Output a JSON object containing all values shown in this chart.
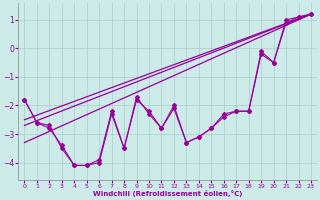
{
  "background_color": "#cceae8",
  "grid_color": "#aacccc",
  "line_color": "#990099",
  "marker": "D",
  "xlim": [
    -0.5,
    23.5
  ],
  "ylim": [
    -4.6,
    1.6
  ],
  "yticks": [
    -4,
    -3,
    -2,
    -1,
    0,
    1
  ],
  "xticks": [
    0,
    1,
    2,
    3,
    4,
    5,
    6,
    7,
    8,
    9,
    10,
    11,
    12,
    13,
    14,
    15,
    16,
    17,
    18,
    19,
    20,
    21,
    22,
    23
  ],
  "xlabel": "Windchill (Refroidissement éolien,°C)",
  "series_zigzag_1": {
    "x": [
      0,
      1,
      2,
      3,
      4,
      5,
      6,
      7,
      8,
      9,
      10,
      11,
      12,
      13,
      14,
      15,
      16,
      17,
      18,
      19,
      20,
      21,
      22,
      23
    ],
    "y": [
      -1.8,
      -2.6,
      -2.7,
      -3.5,
      -4.1,
      -4.1,
      -4.0,
      -2.3,
      -3.5,
      -1.7,
      -2.3,
      -2.8,
      -2.0,
      -3.3,
      -3.1,
      -2.8,
      -2.4,
      -2.2,
      -2.2,
      -0.1,
      -0.5,
      0.9,
      1.1,
      1.2
    ]
  },
  "series_zigzag_2": {
    "x": [
      0,
      1,
      2,
      3,
      4,
      5,
      6,
      7,
      8,
      9,
      10,
      11,
      12,
      13,
      14,
      15,
      16,
      17,
      18,
      19,
      20,
      21,
      22,
      23
    ],
    "y": [
      -1.8,
      -2.6,
      -2.8,
      -3.4,
      -4.1,
      -4.1,
      -3.9,
      -2.2,
      -3.5,
      -1.8,
      -2.2,
      -2.8,
      -2.1,
      -3.3,
      -3.1,
      -2.8,
      -2.3,
      -2.2,
      -2.2,
      -0.2,
      -0.5,
      1.0,
      1.1,
      1.2
    ]
  },
  "trend_line_1": {
    "x": [
      0,
      23
    ],
    "y": [
      -3.3,
      1.2
    ]
  },
  "trend_line_2": {
    "x": [
      0,
      23
    ],
    "y": [
      -2.7,
      1.2
    ]
  },
  "trend_line_3": {
    "x": [
      0,
      23
    ],
    "y": [
      -2.5,
      1.2
    ]
  }
}
